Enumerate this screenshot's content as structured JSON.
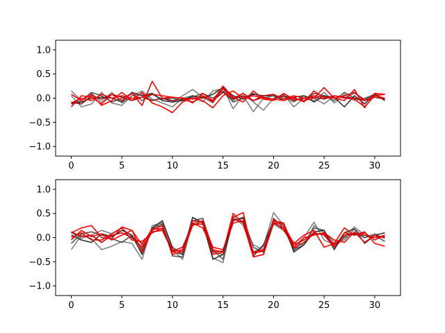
{
  "chart_data": [
    {
      "type": "line",
      "xlim": [
        -1.55,
        32.55
      ],
      "ylim": [
        -1.2,
        1.2
      ],
      "xticks": [
        "0",
        "5",
        "10",
        "15",
        "20",
        "25",
        "30"
      ],
      "yticks": [
        "−1.0",
        "−0.5",
        "0.0",
        "0.5",
        "1.0"
      ],
      "grid": false,
      "x": [
        0,
        1,
        2,
        3,
        4,
        5,
        6,
        7,
        8,
        9,
        10,
        11,
        12,
        13,
        14,
        15,
        16,
        17,
        18,
        19,
        20,
        21,
        22,
        23,
        24,
        25,
        26,
        27,
        28,
        29,
        30,
        31
      ],
      "series": [
        {
          "color": "#808080",
          "values": [
            0.15,
            -0.05,
            0.1,
            -0.08,
            0.12,
            -0.1,
            0.05,
            0.08,
            -0.05,
            0.0,
            -0.08,
            0.05,
            0.18,
            0.02,
            -0.1,
            0.22,
            -0.22,
            0.05,
            -0.28,
            0.0,
            0.05,
            0.02,
            -0.08,
            0.05,
            0.0,
            -0.12,
            0.05,
            0.0,
            0.1,
            -0.02,
            0.05,
            0.0
          ]
        },
        {
          "color": "#808080",
          "values": [
            0.05,
            -0.18,
            -0.12,
            0.12,
            -0.1,
            -0.15,
            0.05,
            0.15,
            -0.02,
            -0.1,
            -0.18,
            0.0,
            0.05,
            -0.08,
            0.15,
            0.2,
            -0.05,
            0.1,
            -0.08,
            -0.25,
            0.0,
            0.08,
            -0.18,
            0.0,
            -0.05,
            0.12,
            -0.1,
            0.08,
            -0.05,
            0.0,
            0.08,
            -0.05
          ]
        },
        {
          "color": "#555555",
          "values": [
            -0.1,
            -0.05,
            0.12,
            0.05,
            -0.08,
            0.0,
            0.1,
            -0.05,
            0.08,
            -0.02,
            0.0,
            -0.05,
            0.02,
            0.1,
            0.0,
            0.15,
            -0.08,
            0.0,
            0.1,
            0.0,
            -0.02,
            0.05,
            0.0,
            -0.05,
            0.1,
            0.05,
            -0.05,
            0.12,
            0.0,
            -0.02,
            0.08,
            -0.02
          ]
        },
        {
          "color": "#333333",
          "values": [
            -0.12,
            -0.08,
            0.0,
            0.02,
            0.0,
            -0.08,
            0.12,
            0.05,
            0.1,
            -0.05,
            -0.08,
            -0.05,
            0.05,
            0.0,
            0.08,
            0.22,
            0.05,
            -0.02,
            0.08,
            0.05,
            0.05,
            -0.05,
            0.02,
            0.05,
            -0.08,
            0.05,
            0.02,
            -0.18,
            0.05,
            -0.12,
            0.1,
            -0.05
          ]
        },
        {
          "color": "#8b1010",
          "values": [
            -0.08,
            -0.12,
            0.05,
            -0.02,
            0.08,
            0.02,
            -0.05,
            0.02,
            -0.05,
            0.0,
            -0.05,
            -0.02,
            -0.08,
            0.02,
            -0.05,
            0.12,
            -0.02,
            0.05,
            -0.05,
            0.02,
            -0.02,
            0.05,
            -0.05,
            0.0,
            0.02,
            -0.02,
            0.05,
            0.02,
            0.0,
            -0.05,
            0.02,
            -0.02
          ]
        },
        {
          "color": "#ff0000",
          "values": [
            -0.18,
            0.05,
            0.02,
            -0.12,
            0.08,
            -0.05,
            0.1,
            -0.15,
            0.35,
            0.0,
            0.02,
            0.0,
            -0.1,
            0.1,
            -0.05,
            0.25,
            0.02,
            -0.08,
            0.15,
            -0.02,
            -0.05,
            0.1,
            -0.02,
            -0.05,
            0.0,
            0.22,
            0.0,
            -0.05,
            0.18,
            -0.2,
            0.1,
            0.08
          ]
        },
        {
          "color": "#ff0000",
          "values": [
            0.08,
            -0.05,
            0.08,
            -0.15,
            -0.05,
            0.12,
            -0.05,
            0.12,
            -0.1,
            -0.18,
            -0.3,
            -0.08,
            0.0,
            -0.05,
            -0.2,
            0.05,
            0.15,
            0.0,
            0.05,
            0.0,
            -0.02,
            -0.05,
            0.02,
            -0.08,
            0.15,
            0.0,
            0.05,
            0.0,
            -0.02,
            -0.18,
            0.05,
            0.0
          ]
        },
        {
          "color": "#ee0000",
          "values": [
            -0.1,
            0.0,
            -0.05,
            0.08,
            0.0,
            0.05,
            0.0,
            0.02,
            0.08,
            0.05,
            0.02,
            0.0,
            -0.02,
            0.05,
            -0.08,
            0.2,
            0.0,
            0.1,
            -0.05,
            0.05,
            0.08,
            -0.02,
            0.05,
            0.0,
            0.05,
            0.02,
            0.0,
            0.05,
            0.12,
            -0.05,
            0.05,
            0.08
          ]
        }
      ]
    },
    {
      "type": "line",
      "xlim": [
        -1.55,
        32.55
      ],
      "ylim": [
        -1.2,
        1.2
      ],
      "xticks": [
        "0",
        "5",
        "10",
        "15",
        "20",
        "25",
        "30"
      ],
      "yticks": [
        "−1.0",
        "−0.5",
        "0.0",
        "0.5",
        "1.0"
      ],
      "grid": false,
      "x": [
        0,
        1,
        2,
        3,
        4,
        5,
        6,
        7,
        8,
        9,
        10,
        11,
        12,
        13,
        14,
        15,
        16,
        17,
        18,
        19,
        20,
        21,
        22,
        23,
        24,
        25,
        26,
        27,
        28,
        29,
        30,
        31
      ],
      "series": [
        {
          "color": "#808080",
          "values": [
            -0.25,
            0.05,
            -0.02,
            -0.25,
            -0.18,
            -0.08,
            -0.12,
            -0.45,
            0.25,
            0.3,
            -0.3,
            -0.35,
            0.42,
            0.3,
            -0.42,
            -0.52,
            0.45,
            0.25,
            -0.3,
            -0.18,
            0.52,
            0.25,
            -0.28,
            0.0,
            0.32,
            -0.05,
            -0.15,
            0.02,
            0.22,
            0.05,
            0.0,
            0.05
          ]
        },
        {
          "color": "#808080",
          "values": [
            0.1,
            -0.02,
            0.05,
            0.15,
            0.08,
            0.2,
            0.02,
            -0.12,
            0.15,
            0.35,
            -0.25,
            -0.45,
            0.3,
            0.35,
            -0.3,
            -0.35,
            0.4,
            0.3,
            -0.15,
            -0.25,
            0.28,
            0.15,
            -0.1,
            -0.15,
            0.25,
            0.1,
            -0.1,
            -0.05,
            0.18,
            0.0,
            0.08,
            -0.02
          ]
        },
        {
          "color": "#555555",
          "values": [
            -0.12,
            0.08,
            0.12,
            0.05,
            -0.02,
            -0.1,
            0.05,
            -0.25,
            0.18,
            0.28,
            -0.38,
            -0.4,
            0.35,
            0.4,
            -0.25,
            -0.45,
            0.35,
            0.4,
            -0.2,
            -0.3,
            0.4,
            0.2,
            -0.25,
            -0.15,
            0.2,
            0.15,
            -0.2,
            0.0,
            0.1,
            0.0,
            0.05,
            -0.08
          ]
        },
        {
          "color": "#333333",
          "values": [
            0.05,
            -0.05,
            -0.1,
            0.08,
            0.02,
            0.15,
            0.05,
            -0.35,
            0.2,
            0.35,
            -0.2,
            -0.35,
            0.42,
            0.3,
            -0.45,
            -0.35,
            0.35,
            0.42,
            -0.38,
            -0.15,
            0.35,
            0.3,
            -0.3,
            -0.15,
            0.12,
            0.15,
            -0.25,
            0.1,
            0.18,
            -0.12,
            0.05,
            0.1
          ]
        },
        {
          "color": "#ff0000",
          "values": [
            0.1,
            0.2,
            0.25,
            0.0,
            -0.02,
            0.22,
            0.15,
            -0.3,
            0.15,
            0.25,
            -0.35,
            -0.28,
            0.25,
            0.35,
            -0.35,
            -0.3,
            0.5,
            0.3,
            -0.4,
            -0.35,
            0.38,
            0.25,
            -0.12,
            0.05,
            0.15,
            -0.2,
            -0.12,
            0.2,
            0.05,
            0.12,
            -0.12,
            -0.18
          ]
        },
        {
          "color": "#ff0000",
          "values": [
            -0.05,
            0.15,
            0.02,
            0.08,
            -0.05,
            0.05,
            0.15,
            -0.15,
            0.18,
            0.18,
            -0.25,
            -0.3,
            0.3,
            0.2,
            -0.25,
            -0.3,
            0.42,
            0.52,
            -0.4,
            -0.35,
            0.3,
            0.3,
            -0.2,
            0.0,
            0.05,
            0.1,
            -0.05,
            -0.1,
            0.12,
            -0.1,
            0.05,
            0.0
          ]
        },
        {
          "color": "#ee0000",
          "values": [
            0.0,
            0.1,
            -0.05,
            -0.05,
            0.08,
            0.2,
            -0.05,
            -0.08,
            0.1,
            0.2,
            -0.3,
            -0.25,
            0.35,
            0.32,
            -0.2,
            -0.25,
            0.3,
            0.35,
            -0.3,
            -0.25,
            0.35,
            0.15,
            -0.15,
            -0.05,
            0.1,
            0.05,
            -0.2,
            0.1,
            0.05,
            0.1,
            -0.05,
            0.05
          ]
        },
        {
          "color": "#cc0000",
          "values": [
            0.12,
            0.02,
            0.05,
            -0.1,
            0.05,
            0.1,
            0.0,
            -0.2,
            0.12,
            0.15,
            -0.28,
            -0.2,
            0.28,
            0.28,
            -0.3,
            -0.28,
            0.38,
            0.32,
            -0.32,
            -0.28,
            0.3,
            0.2,
            -0.22,
            -0.1,
            0.08,
            0.08,
            -0.15,
            0.05,
            0.08,
            0.05,
            0.0,
            0.02
          ]
        }
      ]
    }
  ]
}
